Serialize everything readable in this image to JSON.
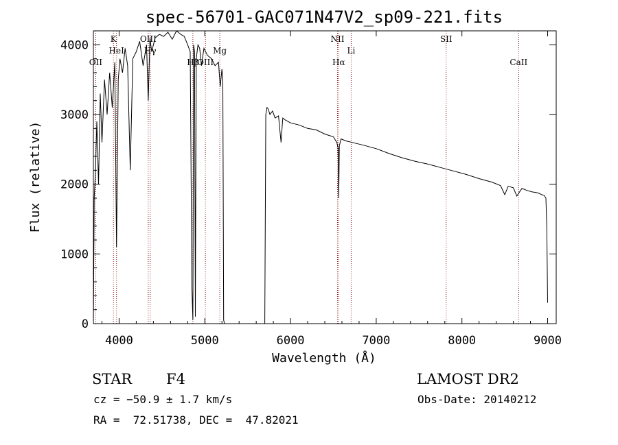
{
  "chart_data": {
    "type": "line",
    "title": "spec-56701-GAC071N47V2_sp09-221.fits",
    "xlabel": "Wavelength (Å)",
    "ylabel": "Flux (relative)",
    "xlim": [
      3700,
      9100
    ],
    "ylim": [
      0,
      4200
    ],
    "x_ticks": [
      4000,
      5000,
      6000,
      7000,
      8000,
      9000
    ],
    "x_tick_labels": [
      "4000",
      "5000",
      "6000",
      "7000",
      "8000",
      "9000"
    ],
    "y_ticks": [
      0,
      1000,
      2000,
      3000,
      4000
    ],
    "y_tick_labels": [
      "0",
      "1000",
      "2000",
      "3000",
      "4000"
    ],
    "grid": false,
    "line_color": "#000000",
    "marker_color": "#8b1a1a",
    "spectral_lines": [
      {
        "label": "OII",
        "wavelength": 3727,
        "label_row": 3
      },
      {
        "label": "K",
        "wavelength": 3934,
        "label_row": 1
      },
      {
        "label": "HeI",
        "wavelength": 3970,
        "label_row": 2
      },
      {
        "label": "OIII",
        "wavelength": 4340,
        "label_row": 1
      },
      {
        "label": "Hγ",
        "wavelength": 4363,
        "label_row": 2
      },
      {
        "label": "Hβ",
        "wavelength": 4861,
        "label_row": 3
      },
      {
        "label": "OIII",
        "wavelength": 5007,
        "label_row": 3
      },
      {
        "label": "Mg",
        "wavelength": 5175,
        "label_row": 2
      },
      {
        "label": "NII",
        "wavelength": 6548,
        "label_row": 1
      },
      {
        "label": "Hα",
        "wavelength": 6563,
        "label_row": 3
      },
      {
        "label": "Li",
        "wavelength": 6708,
        "label_row": 2
      },
      {
        "label": "SII",
        "wavelength": 7816,
        "label_row": 1
      },
      {
        "label": "CaII",
        "wavelength": 8662,
        "label_row": 3
      }
    ],
    "series": [
      {
        "x": [
          3700,
          3710,
          3725,
          3740,
          3760,
          3780,
          3800,
          3830,
          3860,
          3890,
          3920,
          3950,
          3970,
          3990,
          4010,
          4040,
          4070,
          4100,
          4130,
          4160,
          4200,
          4240,
          4280,
          4320,
          4340,
          4360,
          4380,
          4420,
          4470,
          4520,
          4570,
          4620,
          4670,
          4720,
          4760,
          4800,
          4830,
          4850,
          4861,
          4870,
          4880,
          4890,
          4900,
          4920,
          4940,
          4960,
          4990,
          5030,
          5080,
          5120,
          5160,
          5180,
          5200,
          5210,
          5220,
          5230,
          5300,
          5500,
          5700,
          5712,
          5725,
          5740,
          5760,
          5790,
          5820,
          5860,
          5890,
          5910,
          5940,
          6000,
          6100,
          6200,
          6300,
          6400,
          6450,
          6500,
          6540,
          6555,
          6563,
          6570,
          6590,
          6650,
          6750,
          6850,
          7000,
          7150,
          7300,
          7450,
          7600,
          7750,
          7900,
          8050,
          8200,
          8350,
          8450,
          8500,
          8540,
          8600,
          8640,
          8700,
          8760,
          8820,
          8870,
          8900,
          8930,
          8960,
          8980,
          8990,
          9000
        ],
        "y": [
          0,
          1800,
          2200,
          2900,
          2000,
          3300,
          2600,
          3500,
          3000,
          3600,
          3100,
          3750,
          1100,
          3500,
          3800,
          3600,
          3950,
          3700,
          2200,
          3800,
          3900,
          4050,
          3700,
          4000,
          3200,
          4100,
          3900,
          4100,
          4150,
          4120,
          4180,
          4080,
          4200,
          4150,
          4120,
          4000,
          3900,
          500,
          50,
          4000,
          3900,
          100,
          3800,
          4000,
          3950,
          3700,
          3950,
          3850,
          3800,
          3700,
          3750,
          3400,
          3650,
          3500,
          50,
          0,
          0,
          0,
          0,
          3000,
          3100,
          3080,
          3000,
          3050,
          2950,
          2980,
          2600,
          2950,
          2920,
          2880,
          2850,
          2800,
          2780,
          2720,
          2700,
          2680,
          2600,
          2520,
          1800,
          2550,
          2650,
          2620,
          2590,
          2560,
          2510,
          2440,
          2380,
          2330,
          2290,
          2240,
          2190,
          2140,
          2080,
          2030,
          1980,
          1850,
          1970,
          1950,
          1830,
          1940,
          1910,
          1890,
          1880,
          1870,
          1850,
          1840,
          1800,
          1400,
          300
        ]
      }
    ]
  },
  "info": {
    "object_class": "STAR",
    "subclass": "F4",
    "survey": "LAMOST DR2",
    "redshift_line": "cz = −50.9 ± 1.7 km/s",
    "obs_date": "Obs-Date: 20140212",
    "coords": "RA =  72.51738, DEC =  47.82021"
  }
}
